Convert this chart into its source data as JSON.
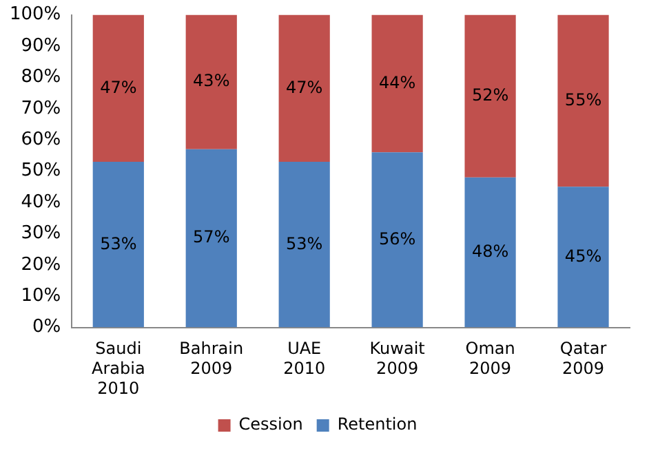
{
  "chart_data": {
    "type": "bar",
    "stacked": true,
    "categories": [
      "Saudi Arabia 2010",
      "Bahrain 2009",
      "UAE 2010",
      "Kuwait 2009",
      "Oman 2009",
      "Qatar 2009"
    ],
    "series": [
      {
        "name": "Retention",
        "color": "#4f81bd",
        "values": [
          53,
          57,
          53,
          56,
          48,
          45
        ],
        "value_labels": [
          "53%",
          "57%",
          "53%",
          "56%",
          "48%",
          "45%"
        ]
      },
      {
        "name": "Cession",
        "color": "#c0504d",
        "values": [
          47,
          43,
          47,
          44,
          52,
          55
        ],
        "value_labels": [
          "47%",
          "43%",
          "47%",
          "44%",
          "52%",
          "55%"
        ]
      }
    ],
    "ylim": [
      0,
      100
    ],
    "yticks": [
      {
        "value": 0,
        "label": "0%"
      },
      {
        "value": 10,
        "label": "10%"
      },
      {
        "value": 20,
        "label": "20%"
      },
      {
        "value": 30,
        "label": "30%"
      },
      {
        "value": 40,
        "label": "40%"
      },
      {
        "value": 50,
        "label": "50%"
      },
      {
        "value": 60,
        "label": "60%"
      },
      {
        "value": 70,
        "label": "70%"
      },
      {
        "value": 80,
        "label": "80%"
      },
      {
        "value": 90,
        "label": "90%"
      },
      {
        "value": 100,
        "label": "100%"
      }
    ],
    "grid": false,
    "legend": "bottom"
  }
}
